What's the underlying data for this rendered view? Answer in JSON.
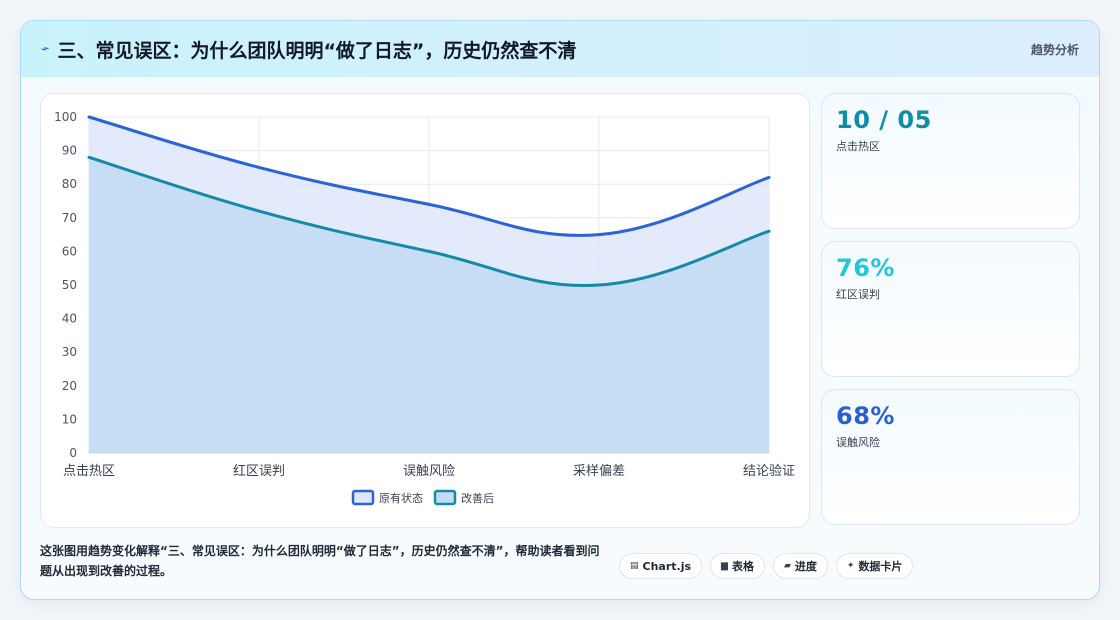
{
  "header": {
    "icon": "bolt-icon",
    "title": "三、常见误区：为什么团队明明“做了日志”，历史仍然查不清",
    "tag": "趋势分析"
  },
  "chart_data": {
    "type": "area",
    "categories": [
      "点击热区",
      "红区误判",
      "误触风险",
      "采样偏差",
      "结论验证"
    ],
    "series": [
      {
        "name": "原有状态",
        "values": [
          100,
          85,
          74,
          65,
          82
        ],
        "color": "#2c63d6",
        "fill": "#dfe8fb"
      },
      {
        "name": "改善后",
        "values": [
          88,
          72,
          60,
          50,
          66
        ],
        "color": "#148aa8",
        "fill": "#c3dcf2"
      }
    ],
    "yticks": [
      "0",
      "10",
      "20",
      "30",
      "40",
      "50",
      "60",
      "70",
      "80",
      "90",
      "100"
    ],
    "ylim": [
      0,
      100
    ],
    "grid": true,
    "legend": "bottom"
  },
  "kpis": [
    {
      "value": "10 / 05",
      "label": "点击热区",
      "color": "#0f8ea8"
    },
    {
      "value": "76%",
      "label": "红区误判",
      "color": "#22c7dd"
    },
    {
      "value": "68%",
      "label": "误触风险",
      "color": "#2a5fd4"
    }
  ],
  "footer": {
    "description": "这张图用趋势变化解释“三、常见误区：为什么团队明明“做了日志”，历史仍然查不清”，帮助读者看到问题从出现到改善的过程。",
    "chips": [
      {
        "icon": "chart-icon",
        "glyph": "▤",
        "label": "Chart.js"
      },
      {
        "icon": "table-icon",
        "glyph": "▆",
        "label": "表格"
      },
      {
        "icon": "progress-icon",
        "glyph": "▰",
        "label": "进度"
      },
      {
        "icon": "sparkle-icon",
        "glyph": "✦",
        "label": "数据卡片"
      }
    ]
  }
}
